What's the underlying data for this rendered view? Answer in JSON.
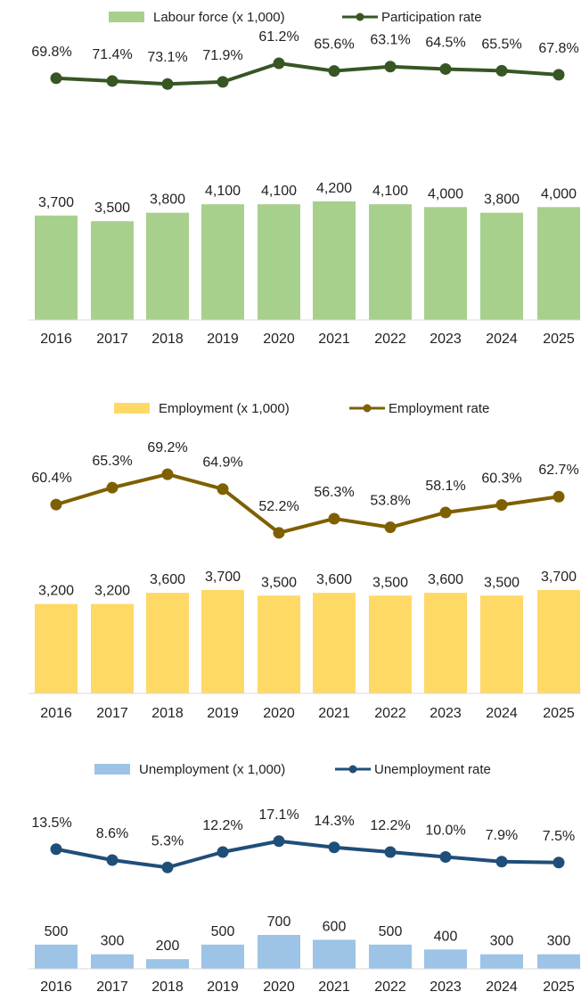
{
  "chart_data": [
    {
      "type": "bar",
      "categories": [
        "2016",
        "2017",
        "2018",
        "2019",
        "2020",
        "2021",
        "2022",
        "2023",
        "2024",
        "2025"
      ],
      "bar_series": {
        "name": "Labour force (x 1,000)",
        "values": [
          3700,
          3500,
          3800,
          4100,
          4100,
          4200,
          4100,
          4000,
          3800,
          4000
        ],
        "labels": [
          "3,700",
          "3,500",
          "3,800",
          "4,100",
          "4,100",
          "4,200",
          "4,100",
          "4,000",
          "3,800",
          "4,000"
        ],
        "color": "#a8d08d"
      },
      "line_series": {
        "name": "Participation rate",
        "values": [
          69.8,
          71.4,
          73.1,
          71.9,
          61.2,
          65.6,
          63.1,
          64.5,
          65.5,
          67.8
        ],
        "labels": [
          "69.8%",
          "71.4%",
          "73.1%",
          "71.9%",
          "61.2%",
          "65.6%",
          "63.1%",
          "64.5%",
          "65.5%",
          "67.8%"
        ],
        "color": "#375623"
      },
      "legend_position": "top-center"
    },
    {
      "type": "bar",
      "categories": [
        "2016",
        "2017",
        "2018",
        "2019",
        "2020",
        "2021",
        "2022",
        "2023",
        "2024",
        "2025"
      ],
      "bar_series": {
        "name": "Employment (x 1,000)",
        "values": [
          3200,
          3200,
          3600,
          3700,
          3500,
          3600,
          3500,
          3600,
          3500,
          3700
        ],
        "labels": [
          "3,200",
          "3,200",
          "3,600",
          "3,700",
          "3,500",
          "3,600",
          "3,500",
          "3,600",
          "3,500",
          "3,700"
        ],
        "color": "#ffd966"
      },
      "line_series": {
        "name": "Employment rate",
        "values": [
          60.4,
          65.3,
          69.2,
          64.9,
          52.2,
          56.3,
          53.8,
          58.1,
          60.3,
          62.7
        ],
        "labels": [
          "60.4%",
          "65.3%",
          "69.2%",
          "64.9%",
          "52.2%",
          "56.3%",
          "53.8%",
          "58.1%",
          "60.3%",
          "62.7%"
        ],
        "color": "#7f6000"
      },
      "legend_position": "top-center"
    },
    {
      "type": "bar",
      "categories": [
        "2016",
        "2017",
        "2018",
        "2019",
        "2020",
        "2021",
        "2022",
        "2023",
        "2024",
        "2025"
      ],
      "bar_series": {
        "name": "Unemployment (x 1,000)",
        "values": [
          500,
          300,
          200,
          500,
          700,
          600,
          500,
          400,
          300,
          300
        ],
        "labels": [
          "500",
          "300",
          "200",
          "500",
          "700",
          "600",
          "500",
          "400",
          "300",
          "300"
        ],
        "color": "#9dc3e6"
      },
      "line_series": {
        "name": "Unemployment rate",
        "values": [
          13.5,
          8.6,
          5.3,
          12.2,
          17.1,
          14.3,
          12.2,
          10.0,
          7.9,
          7.5
        ],
        "labels": [
          "13.5%",
          "8.6%",
          "5.3%",
          "12.2%",
          "17.1%",
          "14.3%",
          "12.2%",
          "10.0%",
          "7.9%",
          "7.5%"
        ],
        "color": "#1f4e79"
      },
      "legend_position": "top-center"
    }
  ]
}
